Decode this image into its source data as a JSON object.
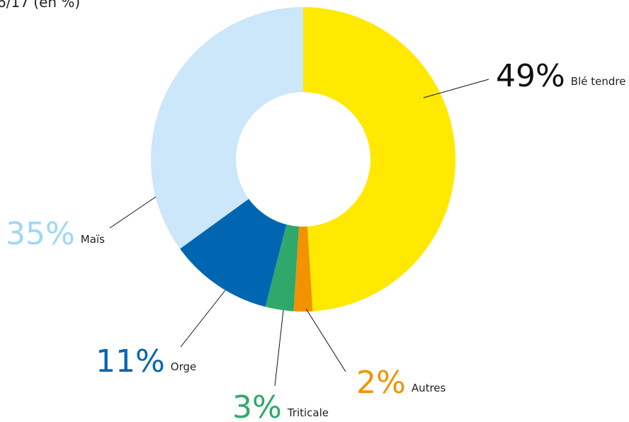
{
  "chart_data": {
    "type": "donut",
    "title": "6/17 (en %)",
    "categories": [
      "Blé tendre",
      "Autres",
      "Triticale",
      "Orge",
      "Maïs"
    ],
    "values": [
      49,
      2,
      3,
      11,
      35
    ],
    "value_labels": [
      "49%",
      "2%",
      "3%",
      "11%",
      "35%"
    ],
    "colors": [
      "#ffe900",
      "#f39200",
      "#2fa96b",
      "#0066b1",
      "#cbe7f9"
    ],
    "label_colors": [
      "#111111",
      "#f39200",
      "#2fa96b",
      "#0066b1",
      "#9ed8f3"
    ]
  }
}
